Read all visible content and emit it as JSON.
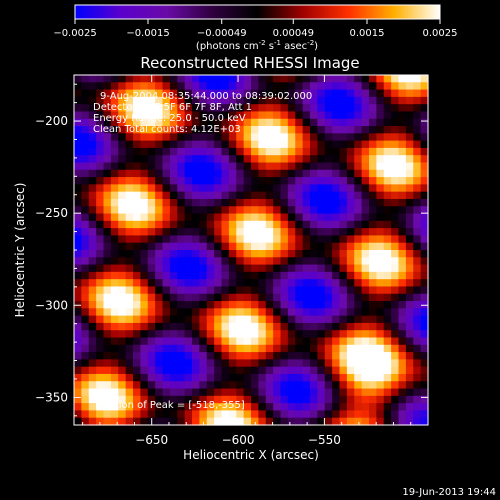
{
  "chart_data": {
    "type": "heatmap",
    "title": "Reconstructed RHESSI Image",
    "xlabel": "Heliocentric X (arcsec)",
    "ylabel": "Heliocentric Y (arcsec)",
    "xlim": [
      -695,
      -490
    ],
    "ylim": [
      -365,
      -175
    ],
    "x_ticks": [
      -650,
      -600,
      -550
    ],
    "y_ticks": [
      -200,
      -250,
      -300,
      -350
    ],
    "grid": false,
    "colorbar": {
      "min": -0.0025,
      "max": 0.0025,
      "tick_values": [
        -0.0025,
        -0.0015,
        -0.00049,
        0.00049,
        0.0015,
        0.0025
      ],
      "tick_labels": [
        "-0.0025",
        "-0.0015",
        "-0.00049",
        "0.00049",
        "0.0015",
        "0.0025"
      ],
      "units_text": "(photons cm",
      "units_sup1": "-2",
      "units_mid": " s",
      "units_sup2": "-1",
      "units_mid2": " asec",
      "units_sup3": "-2",
      "units_end": ")",
      "colors": [
        "#0000ff",
        "#5a00cc",
        "#6a0aa8",
        "#300040",
        "#000000",
        "#a00000",
        "#ff3000",
        "#ffb000",
        "#ffffff"
      ]
    },
    "annotations": [
      "9-Aug-2004 08:35:44.000 to 08:39:02.000",
      "Detectors: 4F 5F 6F 7F 8F, Att 1",
      "Energy Range: 25.0 - 50.0 keV",
      "Clean     Total counts: 4.12E+03"
    ],
    "peak_label": "Position of Peak = [-518,-355]",
    "peak": [
      -518,
      -355
    ],
    "stripe": {
      "kx": 0.055,
      "ky": 0.052,
      "ph1": 2.0,
      "kx2": 0.03,
      "ky2": -0.065,
      "ph2": 0.7,
      "amp": 0.0022
    },
    "grid_cells": 48
  },
  "footer": {
    "timestamp": "19-Jun-2013 19:44"
  }
}
